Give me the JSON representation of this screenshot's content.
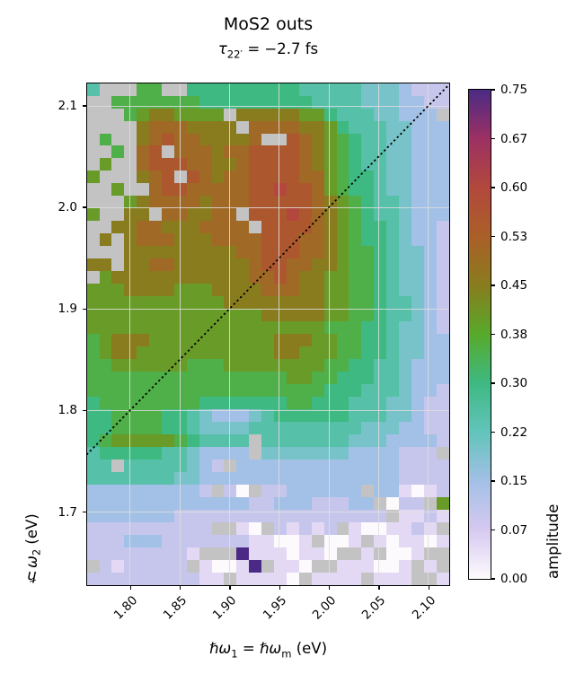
{
  "title": "MoS2 outs",
  "subtitle": {
    "symbol": "τ",
    "sub": "22′",
    "rest": " = −2.7 fs"
  },
  "xlabel": {
    "symbol1": "ℏω",
    "sub1": "1",
    "equals": " = ",
    "symbol2": "ℏω",
    "sub2": "m",
    "unit": " (eV)"
  },
  "ylabel": {
    "symbol": "ℏω",
    "sub": "2",
    "unit": " (eV)"
  },
  "colorbar": {
    "label": "amplitude",
    "tick_labels": [
      "0.75",
      "0.67",
      "0.60",
      "0.53",
      "0.45",
      "0.38",
      "0.30",
      "0.22",
      "0.15",
      "0.07",
      "0.00"
    ]
  },
  "chart_data": {
    "type": "heatmap",
    "title": "MoS2 outs",
    "subtitle": "τ22′ = −2.7 fs",
    "xlabel": "ℏω1 = ℏωm (eV)",
    "ylabel": "ℏω2 (eV)",
    "colorbar_label": "amplitude",
    "x_range": [
      1.757,
      2.121
    ],
    "y_range": [
      1.628,
      2.122
    ],
    "x_ticks": [
      1.8,
      1.85,
      1.9,
      1.95,
      2.0,
      2.05,
      2.1
    ],
    "x_tick_labels": [
      "1.80",
      "1.85",
      "1.90",
      "1.95",
      "2.00",
      "2.05",
      "2.10"
    ],
    "y_ticks": [
      2.1,
      2.0,
      1.9,
      1.8,
      1.7
    ],
    "y_tick_labels": [
      "2.1",
      "2.0",
      "1.9",
      "1.8",
      "1.7"
    ],
    "amplitude_range": [
      0.0,
      0.75
    ],
    "colorbar_tick_step": 0.075,
    "grid": true,
    "colormap_stops": [
      {
        "value": 0.0,
        "color": "#fdfafd"
      },
      {
        "value": 0.075,
        "color": "#d7c9f0"
      },
      {
        "value": 0.15,
        "color": "#a3c0e6"
      },
      {
        "value": 0.225,
        "color": "#62c4bb"
      },
      {
        "value": 0.3,
        "color": "#3eb982"
      },
      {
        "value": 0.375,
        "color": "#57aa2b"
      },
      {
        "value": 0.45,
        "color": "#897c1e"
      },
      {
        "value": 0.525,
        "color": "#ab5f28"
      },
      {
        "value": 0.6,
        "color": "#b2483d"
      },
      {
        "value": 0.675,
        "color": "#9c3063"
      },
      {
        "value": 0.75,
        "color": "#4b2a85"
      }
    ],
    "nan_color": "#c3c3c3",
    "diagonal_line": {
      "style": "dotted",
      "color": "#000000",
      "from_xy": [
        1.757,
        1.757
      ],
      "to_xy": [
        2.121,
        2.121
      ]
    },
    "cell_encoding": "each char = one cell; hex digit 0-f = amplitude 0.00-0.75 in steps of 0.05; '.' = missing value (gray)",
    "n_cols": 29,
    "n_rows": 40,
    "rows_top_to_bottom": [
      "5...77..666666666555554443222",
      "..777777766666666655554443322",
      "...78998888.9999988655544333.",
      "....9aaa9999.aaaa998655544333",
      ".7..9abaa9999a..ba98765544333",
      "..7.ab.aaa9aabbbba98765544333",
      ".8..abbbaa99abbbba98765544333",
      "8...9ab.ba9aabbbbaa8766544333",
      "..8..abbaaaaabbcbba8766544333",
      "...89aaaa9aaabbbbba9876554333",
      "8..99.aa99aa.bbbcba9876554333",
      "..99aa999aaaa.bbbba9876654332",
      ".9.9aaa999aaaabbbaa9876654332",
      "...999999999aabbbaa9877654432",
      "99.99aa999999abbaa99877654432",
      ".899999999999aaba998877654432",
      "88899998889999aaa998877654432",
      "88888888888999999998877655432",
      "88888888888888999998877655432",
      "88888888888888888887776654432",
      "78999888888888899988776654433",
      "78998888888888899888776654433",
      "77888888777888888887766554333",
      "77777777777777778877666554333",
      "77777777777777777776665554332",
      "67777777766666667766655544322",
      "66777766543334566666655544322",
      "66777766544445555555554443322",
      "6788888765555.555555544433332",
      "5666665543333.44444443333222.",
      "55.55555432.33333333333332222",
      "55555554433333333333333332222",
      "3333333332.20.22333333.331012",
      "33333333333332233322233.022.8",
      "333333322222222222222222.1121",
      "2222222222..10.21212.1001121.",
      "222333222222211001.001.101101",
      "222222221...f1110110..1.001..",
      ".2122222.1001f.110..111001.1.",
      "22222222211.11110.1111.111..1"
    ]
  }
}
